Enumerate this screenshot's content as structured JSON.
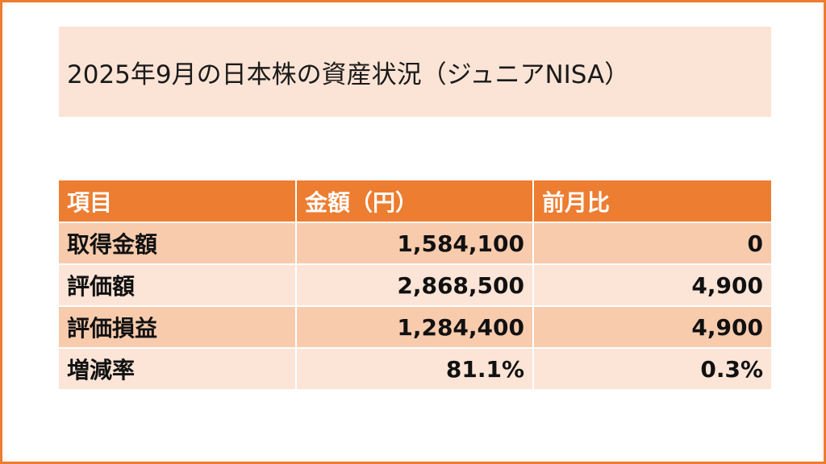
{
  "title": "2025年9月の日本株の資産状況（ジュニアNISA）",
  "table": {
    "headers": [
      "項目",
      "金額（円）",
      "前月比"
    ],
    "rows": [
      {
        "item": "取得金額",
        "amount": "1,584,100",
        "change": "0"
      },
      {
        "item": "評価額",
        "amount": "2,868,500",
        "change": "4,900"
      },
      {
        "item": "評価損益",
        "amount": "1,284,400",
        "change": "4,900"
      },
      {
        "item": "増減率",
        "amount": "81.1%",
        "change": "0.3%"
      }
    ]
  },
  "colors": {
    "border": "#ED7D31",
    "title_bg": "#FBE4D5",
    "header_bg": "#ED7D31",
    "row_dark": "#F8CBAD",
    "row_light": "#FCE4D6"
  }
}
